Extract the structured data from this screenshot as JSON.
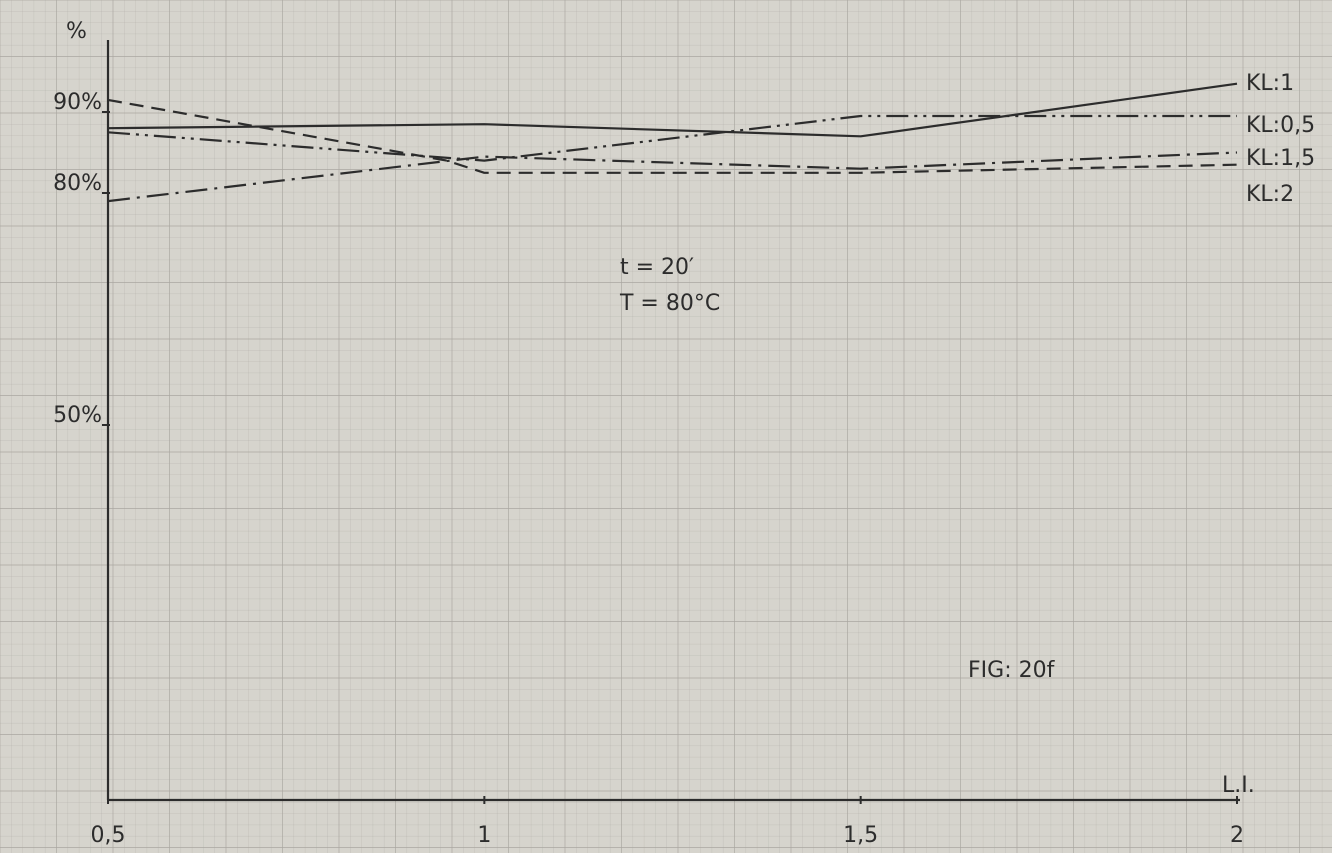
{
  "chart_data": {
    "type": "line",
    "title": "",
    "xlabel": "L.I.",
    "ylabel": "%",
    "xlim": [
      0.5,
      2
    ],
    "ylim": [
      0,
      100
    ],
    "grid": true,
    "x_ticks": [
      {
        "value": 0.5,
        "label": "0,5"
      },
      {
        "value": 1,
        "label": "1"
      },
      {
        "value": 1.5,
        "label": "1,5"
      },
      {
        "value": 2,
        "label": "2"
      }
    ],
    "y_ticks": [
      {
        "value": 90,
        "label": "90%"
      },
      {
        "value": 80,
        "label": "80%"
      },
      {
        "value": 50,
        "label": "50%"
      }
    ],
    "series": [
      {
        "name": "KL:1",
        "style": "solid",
        "x": [
          0.5,
          1,
          1.5,
          2
        ],
        "y": [
          88,
          88.5,
          87,
          93.5
        ]
      },
      {
        "name": "KL:0,5",
        "style": "dash-dot-dot",
        "x": [
          0.5,
          1,
          1.5,
          2
        ],
        "y": [
          87.5,
          84,
          89.5,
          89.5
        ]
      },
      {
        "name": "KL:1,5",
        "style": "dash-dot",
        "x": [
          0.5,
          1,
          1.5,
          2
        ],
        "y": [
          79,
          84.5,
          83,
          85
        ]
      },
      {
        "name": "KL:2",
        "style": "dashed",
        "x": [
          0.5,
          0.95,
          1,
          1.5,
          2
        ],
        "y": [
          91.5,
          84,
          82.5,
          82.5,
          83.5
        ]
      }
    ],
    "annotations": [
      "t = 20′",
      "T = 80°C",
      "FIG: 20f"
    ],
    "colors": {
      "paper": "#d6d4cd",
      "grid": "#a9a7a0",
      "ink": "#2c2c2c"
    }
  }
}
